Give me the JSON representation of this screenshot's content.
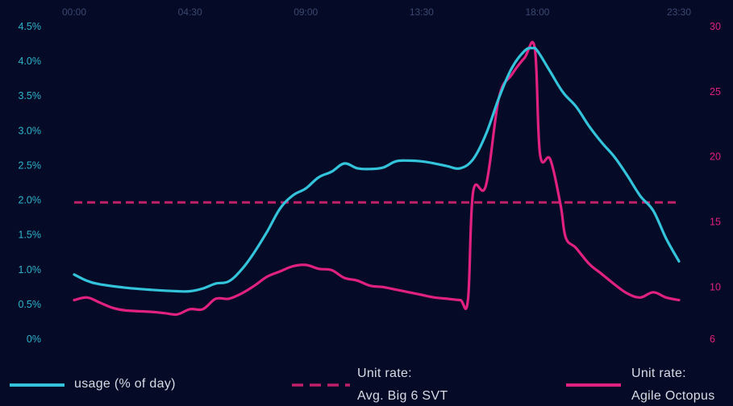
{
  "chart_data": {
    "type": "line",
    "x_ticks": [
      "00:00",
      "04:30",
      "09:00",
      "13:30",
      "18:00",
      "23:30"
    ],
    "y_left": {
      "ticks": [
        "4.5%",
        "4.0%",
        "3.5%",
        "3.0%",
        "2.5%",
        "2.0%",
        "1.5%",
        "1.0%",
        "0.5%",
        "0%"
      ],
      "range": [
        0,
        4.5
      ],
      "unit": "%"
    },
    "y_right": {
      "ticks": [
        "30",
        "25",
        "20",
        "15",
        "10",
        "6"
      ],
      "range": [
        6,
        30
      ]
    },
    "x_range_hours": [
      0,
      23.5
    ],
    "series": [
      {
        "name": "usage (% of day)",
        "axis": "left",
        "color": "#33c4dc",
        "style": "solid",
        "points": [
          [
            0,
            0.93
          ],
          [
            0.5,
            0.84
          ],
          [
            1,
            0.79
          ],
          [
            2,
            0.74
          ],
          [
            3,
            0.71
          ],
          [
            4,
            0.69
          ],
          [
            4.5,
            0.69
          ],
          [
            5,
            0.73
          ],
          [
            5.5,
            0.8
          ],
          [
            6,
            0.83
          ],
          [
            6.5,
            1.0
          ],
          [
            7,
            1.25
          ],
          [
            7.5,
            1.55
          ],
          [
            8,
            1.88
          ],
          [
            8.5,
            2.07
          ],
          [
            9,
            2.17
          ],
          [
            9.5,
            2.33
          ],
          [
            10,
            2.41
          ],
          [
            10.5,
            2.53
          ],
          [
            11,
            2.46
          ],
          [
            11.5,
            2.45
          ],
          [
            12,
            2.47
          ],
          [
            12.5,
            2.56
          ],
          [
            13,
            2.57
          ],
          [
            13.5,
            2.56
          ],
          [
            14,
            2.53
          ],
          [
            14.5,
            2.49
          ],
          [
            15,
            2.46
          ],
          [
            15.5,
            2.59
          ],
          [
            16,
            2.95
          ],
          [
            16.5,
            3.47
          ],
          [
            17,
            3.9
          ],
          [
            17.5,
            4.15
          ],
          [
            17.8,
            4.19
          ],
          [
            18,
            4.15
          ],
          [
            18.5,
            3.85
          ],
          [
            19,
            3.55
          ],
          [
            19.5,
            3.35
          ],
          [
            20,
            3.07
          ],
          [
            20.5,
            2.83
          ],
          [
            21,
            2.62
          ],
          [
            21.5,
            2.35
          ],
          [
            22,
            2.06
          ],
          [
            22.5,
            1.85
          ],
          [
            23,
            1.45
          ],
          [
            23.5,
            1.12
          ]
        ]
      },
      {
        "name": "Agile Octopus",
        "legend_label": "Unit rate:",
        "axis": "right",
        "color": "#e0217f",
        "style": "solid",
        "points": [
          [
            0,
            9.0
          ],
          [
            0.5,
            9.2
          ],
          [
            1,
            8.8
          ],
          [
            1.5,
            8.4
          ],
          [
            2,
            8.2
          ],
          [
            3,
            8.1
          ],
          [
            3.5,
            8.0
          ],
          [
            4,
            7.9
          ],
          [
            4.5,
            8.3
          ],
          [
            5,
            8.3
          ],
          [
            5.5,
            9.1
          ],
          [
            6,
            9.1
          ],
          [
            6.5,
            9.5
          ],
          [
            7,
            10.1
          ],
          [
            7.5,
            10.8
          ],
          [
            8,
            11.2
          ],
          [
            8.5,
            11.6
          ],
          [
            9,
            11.7
          ],
          [
            9.5,
            11.4
          ],
          [
            10,
            11.3
          ],
          [
            10.5,
            10.7
          ],
          [
            11,
            10.5
          ],
          [
            11.5,
            10.1
          ],
          [
            12,
            10.0
          ],
          [
            12.5,
            9.8
          ],
          [
            13,
            9.6
          ],
          [
            13.5,
            9.4
          ],
          [
            14,
            9.2
          ],
          [
            14.5,
            9.1
          ],
          [
            15,
            9.0
          ],
          [
            15.3,
            9.0
          ],
          [
            15.5,
            17.3
          ],
          [
            16,
            17.8
          ],
          [
            16.5,
            24.5
          ],
          [
            17,
            26.3
          ],
          [
            17.5,
            27.6
          ],
          [
            17.9,
            28.3
          ],
          [
            18.1,
            20.2
          ],
          [
            18.5,
            19.8
          ],
          [
            18.9,
            16.3
          ],
          [
            19.1,
            13.8
          ],
          [
            19.5,
            13.0
          ],
          [
            20,
            11.8
          ],
          [
            20.5,
            11.0
          ],
          [
            21,
            10.2
          ],
          [
            21.5,
            9.5
          ],
          [
            22,
            9.2
          ],
          [
            22.5,
            9.6
          ],
          [
            23,
            9.2
          ],
          [
            23.5,
            9.0
          ]
        ]
      },
      {
        "name": "Avg. Big 6 SVT",
        "legend_label": "Unit rate:",
        "axis": "right",
        "color": "#c01f6a",
        "style": "dashed",
        "points": [
          [
            0,
            16.5
          ],
          [
            23.5,
            16.5
          ]
        ]
      }
    ],
    "legend": {
      "usage": "usage (% of day)",
      "svt_line1": "Unit rate:",
      "svt_line2": "Avg. Big 6 SVT",
      "agile_line1": "Unit rate:",
      "agile_line2": "Agile Octopus"
    }
  }
}
